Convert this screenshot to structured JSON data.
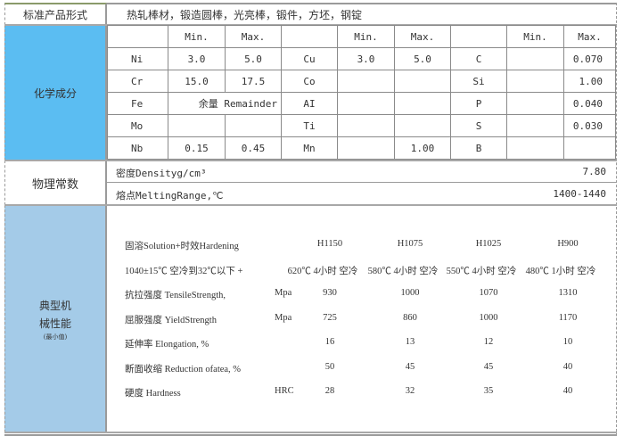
{
  "product_forms": {
    "label": "标准产品形式",
    "value": "热轧棒材，锻造圆棒，光亮棒，锻件，方坯，钢锭"
  },
  "chemistry": {
    "label": "化学成分",
    "header": [
      "",
      "Min.",
      "Max.",
      "",
      "Min.",
      "Max.",
      "",
      "Min.",
      "Max."
    ],
    "rows": [
      [
        "Ni",
        "3.0",
        "5.0",
        "Cu",
        "3.0",
        "5.0",
        "C",
        "",
        "0.070"
      ],
      [
        "Cr",
        "15.0",
        "17.5",
        "Co",
        "",
        "",
        "Si",
        "",
        "1.00"
      ],
      [
        "Fe",
        "余量 Remainder",
        null,
        "AI",
        "",
        "",
        "P",
        "",
        "0.040"
      ],
      [
        "Mo",
        "",
        "",
        "Ti",
        "",
        "",
        "S",
        "",
        "0.030"
      ],
      [
        "Nb",
        "0.15",
        "0.45",
        "Mn",
        "",
        "1.00",
        "B",
        "",
        ""
      ]
    ]
  },
  "physical": {
    "label": "物理常数",
    "rows": [
      {
        "name": "密度Densityg/cm³",
        "value": "7.80"
      },
      {
        "name": "熔点MeltingRange,℃",
        "value": "1400-1440"
      }
    ]
  },
  "mechanical": {
    "label_line1": "典型机",
    "label_line2": "械性能",
    "label_note": "(最小值)",
    "treatment_label": "固溶Solution+时效Hardening",
    "conditions": [
      "H1150",
      "H1075",
      "H1025",
      "H900"
    ],
    "process_label": "1040±15℃ 空冷到32℃以下 +",
    "processes": [
      "620℃ 4小时 空冷",
      "580℃ 4小时 空冷",
      "550℃ 4小时 空冷",
      "480℃ 1小时 空冷"
    ],
    "rows": [
      {
        "name": "抗拉强度 TensileStrength,",
        "unit": "Mpa",
        "values": [
          "930",
          "1000",
          "1070",
          "1310"
        ]
      },
      {
        "name": "屈服强度 YieldStrength",
        "unit": "Mpa",
        "values": [
          "725",
          "860",
          "1000",
          "1170"
        ]
      },
      {
        "name": "延伸率 Elongation, %",
        "unit": "",
        "values": [
          "16",
          "13",
          "12",
          "10"
        ]
      },
      {
        "name": "断面收缩 Reduction ofatea, %",
        "unit": "",
        "values": [
          "50",
          "45",
          "45",
          "40"
        ]
      },
      {
        "name": "硬度 Hardness",
        "unit": "HRC",
        "values": [
          "28",
          "32",
          "35",
          "40"
        ]
      }
    ]
  },
  "colors": {
    "chem_bg": "#5bbdf2",
    "mech_bg": "#a4cbe8"
  }
}
